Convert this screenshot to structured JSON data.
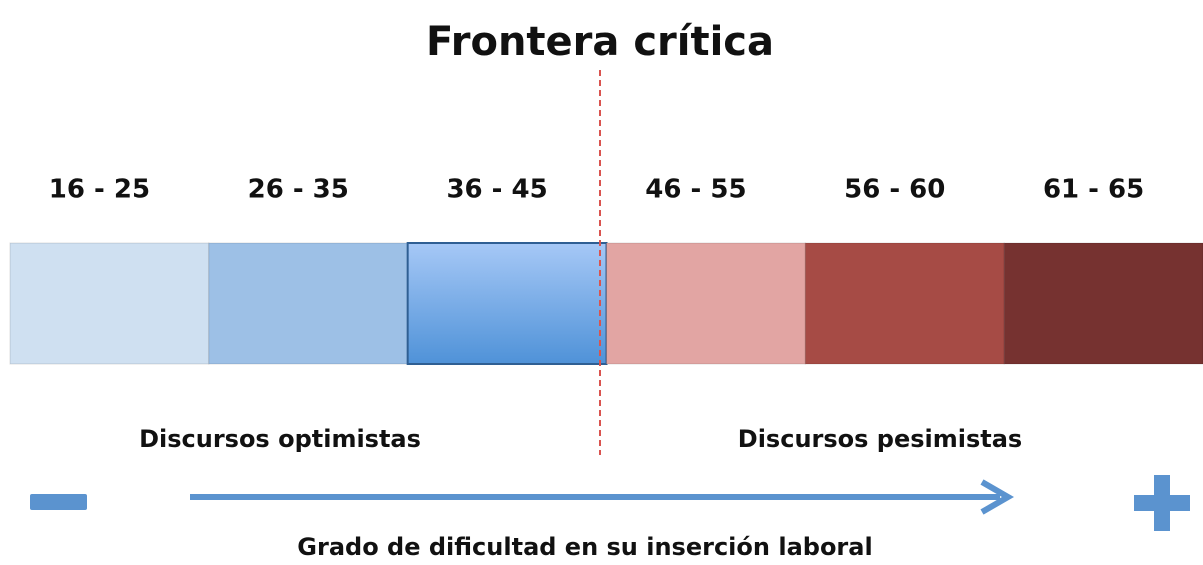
{
  "title": "Frontera crítica",
  "segments": [
    {
      "label": "16 - 25",
      "color": "#cfe0f1"
    },
    {
      "label": "26 - 35",
      "color": "#9dc0e6"
    },
    {
      "label": "36 - 45",
      "color": "#6aa3e3"
    },
    {
      "label": "46 - 55",
      "color": "#e2a5a3"
    },
    {
      "label": "56 - 60",
      "color": "#a64b45"
    },
    {
      "label": "61 - 65",
      "color": "#763230"
    }
  ],
  "left_label": "Discursos optimistas",
  "right_label": "Discursos pesimistas",
  "axis_label": "Grado de dificultad en su inserción laboral"
}
